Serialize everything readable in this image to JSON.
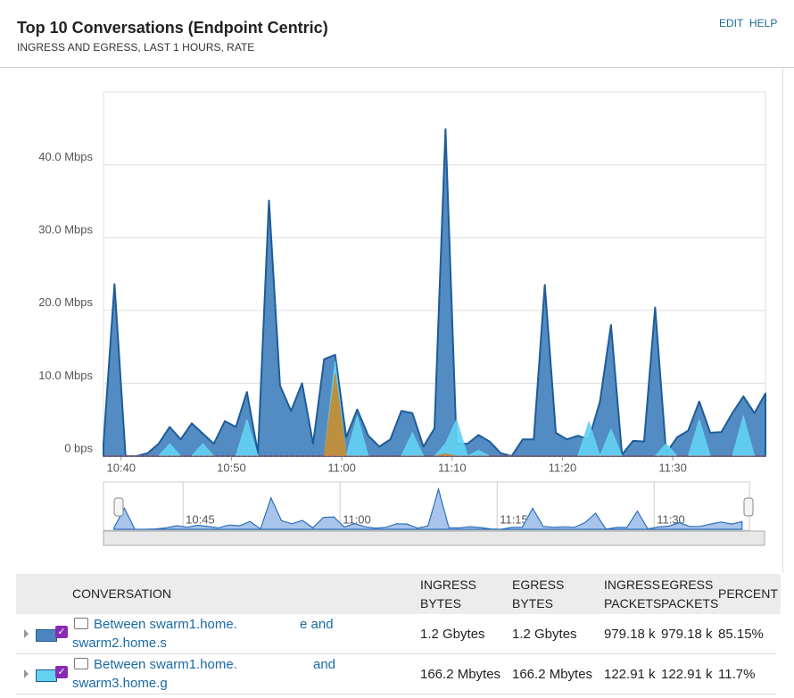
{
  "header": {
    "title": "Top 10 Conversations (Endpoint Centric)",
    "subtitle": "INGRESS AND EGRESS, LAST 1 HOURS, RATE",
    "links": [
      "EDIT",
      "HELP"
    ]
  },
  "chart_data": {
    "type": "area",
    "x": [
      638.4,
      639.4,
      640.4,
      641.4,
      642.4,
      643.4,
      644.4,
      645.4,
      646.4,
      647.4,
      648.4,
      649.4,
      650.4,
      651.4,
      652.4,
      653.4,
      654.4,
      655.4,
      656.4,
      657.4,
      658.4,
      659.4,
      660.4,
      661.4,
      662.4,
      663.4,
      664.4,
      665.4,
      666.4,
      667.4,
      668.4,
      669.4,
      670.4,
      671.4,
      672.4,
      673.4,
      674.4,
      675.4,
      676.4,
      677.4,
      678.4,
      679.4,
      680.4,
      681.4,
      682.4,
      683.4,
      684.4,
      685.4,
      686.4,
      687.4,
      688.4,
      689.4,
      690.4,
      691.4,
      692.4,
      693.4,
      694.4,
      695.4,
      696.4,
      697.4,
      698.4
    ],
    "xlim": [
      638.4,
      698.4
    ],
    "xticks": [
      {
        "value": 640,
        "label": "10:40"
      },
      {
        "value": 650,
        "label": "10:50"
      },
      {
        "value": 660,
        "label": "11:00"
      },
      {
        "value": 670,
        "label": "11:10"
      },
      {
        "value": 680,
        "label": "11:20"
      },
      {
        "value": 690,
        "label": "11:30"
      }
    ],
    "ylim": [
      0,
      50
    ],
    "yticks": [
      {
        "value": 0,
        "label": "0 bps"
      },
      {
        "value": 10,
        "label": "10.0 Mbps"
      },
      {
        "value": 20,
        "label": "20.0 Mbps"
      },
      {
        "value": 30,
        "label": "30.0 Mbps"
      },
      {
        "value": 40,
        "label": "40.0 Mbps"
      }
    ],
    "grid": true,
    "series": [
      {
        "color": "#4a86c0",
        "values": [
          1.7,
          23.6,
          0,
          0,
          0.4,
          1.7,
          4.0,
          2.3,
          4.5,
          3.1,
          1.7,
          4.8,
          4.0,
          8.8,
          0.4,
          35.1,
          9.7,
          6.2,
          10.0,
          1.7,
          13.3,
          13.9,
          2.6,
          6.4,
          2.8,
          1.3,
          2.3,
          6.2,
          5.9,
          1.3,
          3.8,
          44.9,
          1.7,
          1.7,
          2.9,
          2.0,
          0.4,
          0,
          2.3,
          2.3,
          23.5,
          3.2,
          2.3,
          2.8,
          2.3,
          7.5,
          18.0,
          0.2,
          2.1,
          2.0,
          20.4,
          0.4,
          2.6,
          3.5,
          7.5,
          3.2,
          3.3,
          5.9,
          8.2,
          5.9,
          8.6
        ]
      },
      {
        "color": "#62d2f2",
        "values": [
          0,
          0,
          0,
          0,
          0,
          0,
          1.7,
          0,
          0,
          1.7,
          0,
          0,
          0,
          5.0,
          0,
          0,
          0,
          0,
          0,
          0,
          0,
          13.0,
          0,
          5.5,
          0,
          0,
          0,
          0,
          3.2,
          0,
          0,
          1.7,
          5.0,
          0,
          0.8,
          0,
          0,
          0,
          0,
          0,
          0,
          0,
          0,
          0,
          4.7,
          0,
          3.7,
          0,
          0,
          0,
          0,
          1.7,
          0,
          0,
          5.0,
          0,
          0,
          0,
          5.5,
          0,
          0
        ]
      },
      {
        "color": "#c68a2c",
        "values": [
          0,
          0,
          0,
          0,
          0,
          0,
          0,
          0,
          0,
          0,
          0,
          0,
          0,
          0,
          0,
          0,
          0,
          0,
          0,
          0,
          0,
          11.3,
          0,
          0,
          0,
          0,
          0,
          0,
          0,
          0,
          0,
          0.3,
          0,
          0,
          0,
          0,
          0,
          0,
          0,
          0,
          0,
          0,
          0,
          0,
          0,
          0,
          0,
          0,
          0,
          0,
          0,
          0,
          0,
          0,
          0,
          0,
          0,
          0,
          0,
          0,
          0
        ]
      }
    ]
  },
  "navigator": {
    "xlim": [
      637.4,
      699.1
    ],
    "xticks": [
      {
        "value": 645,
        "label": "10:45"
      },
      {
        "value": 660,
        "label": "11:00"
      },
      {
        "value": 675,
        "label": "11:15"
      },
      {
        "value": 690,
        "label": "11:30"
      }
    ]
  },
  "table": {
    "columns": [
      "CONVERSATION",
      "INGRESS BYTES",
      "EGRESS BYTES",
      "INGRESS PACKETS",
      "EGRESS PACKETS",
      "PERCENT"
    ],
    "rows": [
      {
        "conversation": [
          "Between swarm1.home.",
          "e and",
          "swarm2.home.s"
        ],
        "cells": [
          "1.2 Gbytes",
          "1.2 Gbytes",
          "979.18 k",
          "979.18 k",
          "85.15%"
        ]
      },
      {
        "conversation": [
          "Between swarm1.home.",
          "and",
          "swarm3.home.g"
        ],
        "cells": [
          "166.2 Mbytes",
          "166.2 Mbytes",
          "122.91 k",
          "122.91 k",
          "11.7%"
        ]
      }
    ]
  }
}
